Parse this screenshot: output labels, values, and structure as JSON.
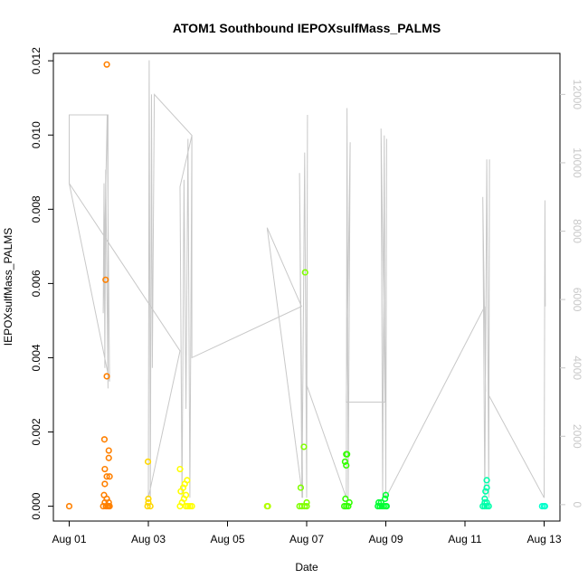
{
  "chart_data": {
    "type": "scatter",
    "title": "ATOM1 Southbound IEPOXsulfMass_PALMS",
    "xlabel": "Date",
    "ylabel": "IEPOXsulfMass_PALMS",
    "x_unit": "days since Aug 01",
    "xlim": [
      -0.4,
      12.4
    ],
    "ylim": [
      -0.0004,
      0.0122
    ],
    "y2lim": [
      -480,
      13200
    ],
    "x_ticks": [
      {
        "value": 0,
        "label": "Aug 01"
      },
      {
        "value": 2,
        "label": "Aug 03"
      },
      {
        "value": 4,
        "label": "Aug 05"
      },
      {
        "value": 6,
        "label": "Aug 07"
      },
      {
        "value": 8,
        "label": "Aug 09"
      },
      {
        "value": 10,
        "label": "Aug 11"
      },
      {
        "value": 12,
        "label": "Aug 13"
      }
    ],
    "y_ticks": [
      {
        "value": 0.0,
        "label": "0.000"
      },
      {
        "value": 0.002,
        "label": "0.002"
      },
      {
        "value": 0.004,
        "label": "0.004"
      },
      {
        "value": 0.006,
        "label": "0.006"
      },
      {
        "value": 0.008,
        "label": "0.008"
      },
      {
        "value": 0.01,
        "label": "0.010"
      },
      {
        "value": 0.012,
        "label": "0.012"
      }
    ],
    "y2_ticks": [
      {
        "value": 0,
        "label": "0"
      },
      {
        "value": 2000,
        "label": "2000"
      },
      {
        "value": 4000,
        "label": "4000"
      },
      {
        "value": 6000,
        "label": "6000"
      },
      {
        "value": 8000,
        "label": "8000"
      },
      {
        "value": 10000,
        "label": "10000"
      },
      {
        "value": 12000,
        "label": "12000"
      }
    ],
    "grid": false,
    "legend": "none",
    "series": [
      {
        "color": "#ff8000",
        "points": [
          [
            0.0,
            0.0
          ],
          [
            0.86,
            0.0
          ],
          [
            0.9,
            0.0001
          ],
          [
            0.95,
            0.0002
          ],
          [
            0.88,
            0.0003
          ],
          [
            0.9,
            0.0006
          ],
          [
            0.95,
            0.0008
          ],
          [
            1.02,
            0.0008
          ],
          [
            0.9,
            0.001
          ],
          [
            1.0,
            0.0013
          ],
          [
            1.0,
            0.0015
          ],
          [
            0.89,
            0.0018
          ],
          [
            0.95,
            0.0035
          ],
          [
            0.92,
            0.0061
          ],
          [
            0.95,
            0.0119
          ],
          [
            0.93,
            0.0
          ],
          [
            0.97,
            0.0
          ],
          [
            1.0,
            0.0
          ],
          [
            1.02,
            0.0
          ],
          [
            1.0,
            0.0001
          ]
        ]
      },
      {
        "color": "#ffd700",
        "points": [
          [
            1.98,
            0.0
          ],
          [
            2.0,
            0.0001
          ],
          [
            2.0,
            0.0002
          ],
          [
            2.05,
            0.0
          ],
          [
            1.99,
            0.0012
          ]
        ]
      },
      {
        "color": "#ffff00",
        "points": [
          [
            2.8,
            0.0
          ],
          [
            2.85,
            0.0001
          ],
          [
            2.9,
            0.0002
          ],
          [
            2.95,
            0.0003
          ],
          [
            2.82,
            0.0004
          ],
          [
            2.88,
            0.0005
          ],
          [
            2.92,
            0.0006
          ],
          [
            2.98,
            0.0007
          ],
          [
            2.8,
            0.001
          ],
          [
            3.0,
            0.0
          ],
          [
            3.05,
            0.0
          ],
          [
            3.1,
            0.0
          ],
          [
            2.95,
            0.0
          ]
        ]
      },
      {
        "color": "#b3ff00",
        "points": [
          [
            5.0,
            0.0
          ],
          [
            5.02,
            0.0
          ]
        ]
      },
      {
        "color": "#80ff00",
        "points": [
          [
            5.82,
            0.0
          ],
          [
            5.88,
            0.0
          ],
          [
            5.95,
            0.0
          ],
          [
            6.0,
            0.0
          ],
          [
            6.0,
            0.0001
          ],
          [
            5.85,
            0.0005
          ],
          [
            5.93,
            0.0016
          ],
          [
            5.96,
            0.0063
          ]
        ]
      },
      {
        "color": "#33ff00",
        "points": [
          [
            6.95,
            0.0
          ],
          [
            7.0,
            0.0
          ],
          [
            7.05,
            0.0
          ],
          [
            7.08,
            0.0001
          ],
          [
            6.98,
            0.0002
          ],
          [
            7.0,
            0.0011
          ],
          [
            6.97,
            0.0012
          ],
          [
            7.0,
            0.0014
          ],
          [
            7.02,
            0.0014
          ]
        ]
      },
      {
        "color": "#00ff33",
        "points": [
          [
            7.8,
            0.0
          ],
          [
            7.85,
            0.0
          ],
          [
            7.9,
            0.0
          ],
          [
            7.95,
            0.0
          ],
          [
            8.0,
            0.0
          ],
          [
            8.02,
            0.0
          ],
          [
            7.82,
            0.0001
          ],
          [
            7.88,
            0.0001
          ],
          [
            7.98,
            0.0002
          ],
          [
            8.0,
            0.0003
          ]
        ]
      },
      {
        "color": "#00ffaa",
        "points": [
          [
            10.45,
            0.0
          ],
          [
            10.5,
            0.0
          ],
          [
            10.55,
            0.0
          ],
          [
            10.6,
            0.0
          ],
          [
            10.5,
            0.0001
          ],
          [
            10.55,
            0.0001
          ],
          [
            10.5,
            0.0002
          ],
          [
            10.52,
            0.0004
          ],
          [
            10.55,
            0.0005
          ],
          [
            10.55,
            0.0007
          ]
        ]
      },
      {
        "color": "#00ffcc",
        "points": [
          [
            11.95,
            0.0
          ],
          [
            12.0,
            0.0
          ],
          [
            12.02,
            0.0
          ]
        ]
      }
    ],
    "secondary_track": {
      "color": "#c8c8c8",
      "points": [
        [
          0.0,
          9400
        ],
        [
          0.0,
          11400
        ],
        [
          0.98,
          11400
        ],
        [
          0.98,
          3400
        ],
        [
          0.92,
          9800
        ],
        [
          0.9,
          4000
        ],
        [
          0.88,
          9400
        ],
        [
          0.86,
          5600
        ],
        [
          0.96,
          11400
        ],
        [
          1.02,
          3600
        ],
        [
          0.0,
          9400
        ],
        [
          2.8,
          4500
        ],
        [
          2.0,
          200
        ],
        [
          2.02,
          13000
        ],
        [
          2.05,
          200
        ],
        [
          2.08,
          12000
        ],
        [
          2.1,
          4000
        ],
        [
          2.15,
          12000
        ],
        [
          3.1,
          10800
        ],
        [
          2.8,
          9300
        ],
        [
          2.85,
          200
        ],
        [
          2.9,
          9500
        ],
        [
          2.95,
          2800
        ],
        [
          3.0,
          10700
        ],
        [
          3.05,
          200
        ],
        [
          3.1,
          10800
        ],
        [
          3.1,
          4300
        ],
        [
          5.87,
          5800
        ],
        [
          5.0,
          8100
        ],
        [
          5.9,
          200
        ],
        [
          5.82,
          9700
        ],
        [
          5.88,
          200
        ],
        [
          5.95,
          10300
        ],
        [
          6.0,
          200
        ],
        [
          6.02,
          11400
        ],
        [
          6.0,
          3500
        ],
        [
          7.0,
          200
        ],
        [
          7.02,
          11600
        ],
        [
          7.05,
          200
        ],
        [
          7.1,
          10600
        ],
        [
          7.0,
          3000
        ],
        [
          7.98,
          3000
        ],
        [
          7.88,
          11000
        ],
        [
          7.92,
          200
        ],
        [
          7.96,
          10800
        ],
        [
          8.0,
          200
        ],
        [
          8.02,
          10700
        ],
        [
          8.0,
          200
        ],
        [
          10.5,
          5800
        ],
        [
          10.52,
          3300
        ],
        [
          10.45,
          9000
        ],
        [
          10.5,
          200
        ],
        [
          10.55,
          10100
        ],
        [
          10.6,
          200
        ],
        [
          10.62,
          10100
        ],
        [
          10.6,
          3200
        ],
        [
          12.0,
          200
        ],
        [
          12.02,
          8900
        ],
        [
          12.03,
          5800
        ]
      ]
    }
  }
}
